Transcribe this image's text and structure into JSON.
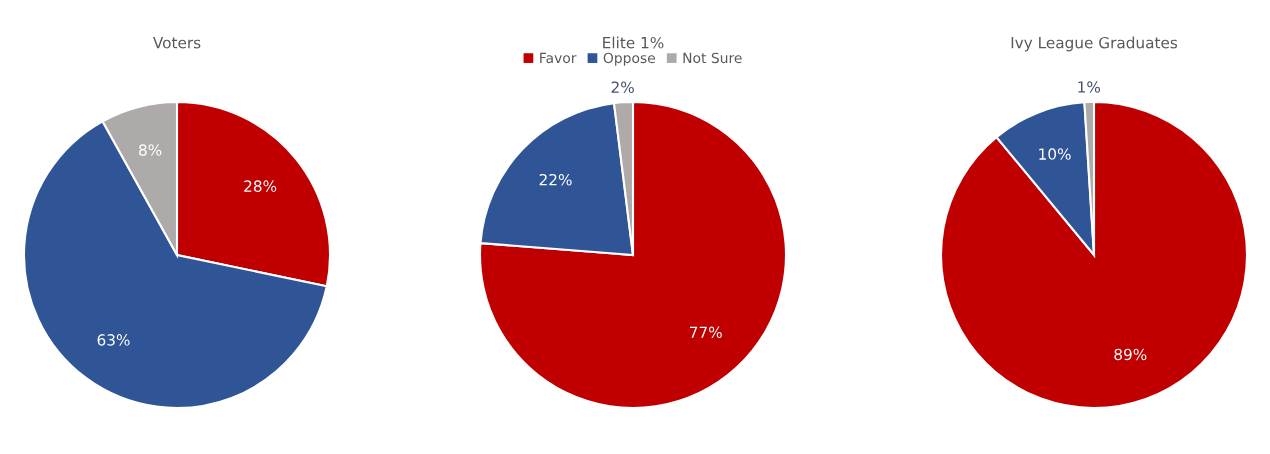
{
  "chart_data": [
    {
      "type": "pie",
      "title": "Voters",
      "categories": [
        null,
        null,
        null
      ],
      "values": [
        28,
        63,
        8
      ],
      "value_labels": [
        "28%",
        "63%",
        "8%"
      ],
      "colors": [
        "#c00000",
        "#2f5597",
        "#aeaaaa"
      ],
      "legend": false
    },
    {
      "type": "pie",
      "title": "Elite 1%",
      "categories": [
        "Favor",
        "Oppose",
        "Not Sure"
      ],
      "values": [
        77,
        22,
        2
      ],
      "value_labels": [
        "77%",
        "22%",
        "2%"
      ],
      "colors": [
        "#c00000",
        "#2f5597",
        "#aeaaaa"
      ],
      "legend": "top"
    },
    {
      "type": "pie",
      "title": "Ivy League Graduates",
      "categories": [
        null,
        null,
        null
      ],
      "values": [
        89,
        10,
        1
      ],
      "value_labels": [
        "89%",
        "10%",
        "1%"
      ],
      "colors": [
        "#c00000",
        "#2f5597",
        "#aeaaaa"
      ],
      "legend": false
    }
  ]
}
